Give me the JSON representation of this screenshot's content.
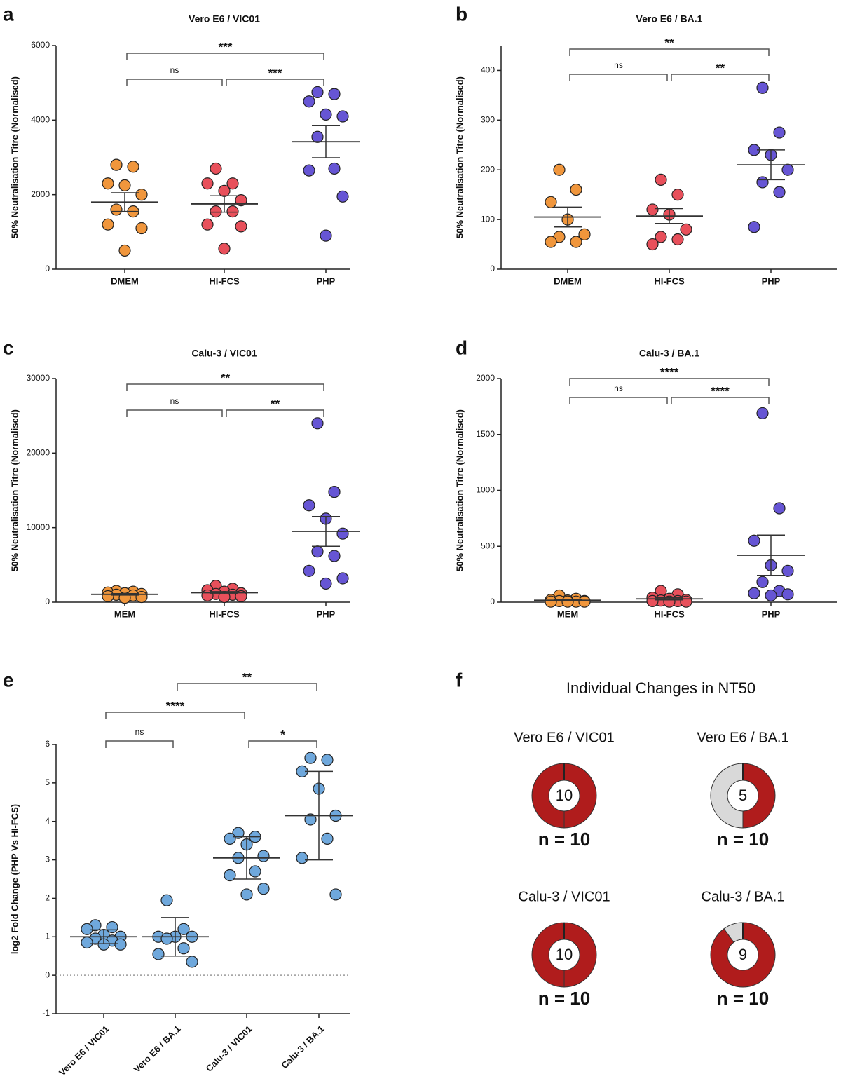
{
  "chart_data": [
    {
      "type": "strip",
      "panel": "a",
      "title": "Vero E6 / VIC01",
      "y_label": "50% Neutralisation Titre (Normalised)",
      "categories": [
        "DMEM",
        "HI-FCS",
        "PHP"
      ],
      "groups": [
        {
          "color": "#f0963c",
          "values": [
            2800,
            2750,
            2300,
            2250,
            2000,
            1600,
            1550,
            1200,
            1100,
            500
          ],
          "mean": 1800,
          "error": 250
        },
        {
          "color": "#e8505b",
          "values": [
            2700,
            2300,
            2300,
            2100,
            1850,
            1550,
            1550,
            1200,
            1150,
            550
          ],
          "mean": 1750,
          "error": 220
        },
        {
          "color": "#6655d4",
          "values": [
            4750,
            4700,
            4500,
            4150,
            4100,
            3550,
            2700,
            2650,
            1950,
            900
          ],
          "mean": 3420,
          "error": 430
        }
      ],
      "ylim": [
        0,
        6000
      ],
      "yticks": [
        0,
        2000,
        4000,
        6000
      ],
      "brackets": [
        {
          "from": 0,
          "to": 1,
          "label": "ns"
        },
        {
          "from": 1,
          "to": 2,
          "label": "***"
        },
        {
          "from": 0,
          "to": 2,
          "label": "***"
        }
      ]
    },
    {
      "type": "strip",
      "panel": "b",
      "title": "Vero E6 / BA.1",
      "y_label": "50% Neutralisation Titre (Normalised)",
      "categories": [
        "DMEM",
        "HI-FCS",
        "PHP"
      ],
      "groups": [
        {
          "color": "#f0963c",
          "values": [
            200,
            160,
            135,
            100,
            70,
            65,
            55,
            55
          ],
          "mean": 105,
          "error": 20
        },
        {
          "color": "#e8505b",
          "values": [
            180,
            150,
            120,
            110,
            80,
            65,
            60,
            50
          ],
          "mean": 107,
          "error": 15
        },
        {
          "color": "#6655d4",
          "values": [
            365,
            275,
            240,
            230,
            200,
            175,
            155,
            85
          ],
          "mean": 210,
          "error": 30
        }
      ],
      "ylim": [
        0,
        450
      ],
      "yticks": [
        0,
        100,
        200,
        300,
        400
      ],
      "brackets": [
        {
          "from": 0,
          "to": 1,
          "label": "ns"
        },
        {
          "from": 1,
          "to": 2,
          "label": "**"
        },
        {
          "from": 0,
          "to": 2,
          "label": "**"
        }
      ]
    },
    {
      "type": "strip",
      "panel": "c",
      "title": "Calu-3 / VIC01",
      "y_label": "50% Neutralisation Titre (Normalised)",
      "categories": [
        "MEM",
        "HI-FCS",
        "PHP"
      ],
      "groups": [
        {
          "color": "#f0963c",
          "values": [
            1500,
            1400,
            1300,
            1200,
            1100,
            1000,
            900,
            800,
            700,
            600
          ],
          "mean": 1050,
          "error": 100
        },
        {
          "color": "#e8505b",
          "values": [
            2200,
            1800,
            1600,
            1400,
            1200,
            1100,
            1000,
            900,
            800,
            700
          ],
          "mean": 1270,
          "error": 150
        },
        {
          "color": "#6655d4",
          "values": [
            24000,
            14800,
            13000,
            11200,
            9200,
            6800,
            6200,
            4200,
            3200,
            2500
          ],
          "mean": 9500,
          "error": 2000
        }
      ],
      "ylim": [
        0,
        30000
      ],
      "yticks": [
        0,
        10000,
        20000,
        30000
      ],
      "brackets": [
        {
          "from": 0,
          "to": 1,
          "label": "ns"
        },
        {
          "from": 1,
          "to": 2,
          "label": "**"
        },
        {
          "from": 0,
          "to": 2,
          "label": "**"
        }
      ]
    },
    {
      "type": "strip",
      "panel": "d",
      "title": "Calu-3 / BA.1",
      "y_label": "50% Neutralisation Titre (Normalised)",
      "categories": [
        "MEM",
        "HI-FCS",
        "PHP"
      ],
      "groups": [
        {
          "color": "#f0963c",
          "values": [
            60,
            30,
            20,
            15,
            10,
            10,
            5,
            5,
            5,
            5
          ],
          "mean": 17,
          "error": 5
        },
        {
          "color": "#e8505b",
          "values": [
            100,
            70,
            40,
            30,
            20,
            15,
            10,
            10,
            5,
            5
          ],
          "mean": 30,
          "error": 10
        },
        {
          "color": "#6655d4",
          "values": [
            1690,
            840,
            550,
            330,
            280,
            180,
            100,
            80,
            70,
            60
          ],
          "mean": 420,
          "error": 180
        }
      ],
      "ylim": [
        0,
        2000
      ],
      "yticks": [
        0,
        500,
        1000,
        1500,
        2000
      ],
      "brackets": [
        {
          "from": 0,
          "to": 1,
          "label": "ns"
        },
        {
          "from": 1,
          "to": 2,
          "label": "****"
        },
        {
          "from": 0,
          "to": 2,
          "label": "****"
        }
      ]
    },
    {
      "type": "strip",
      "panel": "e",
      "y_label": "log2 Fold Change (PHP Vs HI-FCS)",
      "categories": [
        "Vero E6 / VIC01",
        "Vero E6 / BA.1",
        "Calu-3 / VIC01",
        "Calu-3 / BA.1"
      ],
      "groups": [
        {
          "color": "#6fa8dc",
          "values": [
            1.3,
            1.25,
            1.2,
            1.05,
            1.0,
            0.95,
            0.9,
            0.85,
            0.8,
            0.8
          ],
          "mean": 1.0,
          "error": 0.18
        },
        {
          "color": "#6fa8dc",
          "values": [
            1.95,
            1.2,
            1.0,
            1.0,
            1.0,
            0.95,
            0.7,
            0.55,
            0.35
          ],
          "mean": 1.0,
          "error": 0.5
        },
        {
          "color": "#6fa8dc",
          "values": [
            3.7,
            3.6,
            3.55,
            3.4,
            3.1,
            3.05,
            2.7,
            2.6,
            2.25,
            2.1
          ],
          "mean": 3.05,
          "error": 0.55
        },
        {
          "color": "#6fa8dc",
          "values": [
            5.65,
            5.6,
            5.3,
            4.85,
            4.15,
            4.05,
            3.55,
            3.05,
            2.1
          ],
          "mean": 4.15,
          "error": 1.15
        }
      ],
      "ylim": [
        -1,
        6
      ],
      "yticks": [
        -1,
        0,
        1,
        2,
        3,
        4,
        5,
        6
      ],
      "reference_line": 0,
      "brackets": [
        {
          "from": 0,
          "to": 1,
          "label": "ns"
        },
        {
          "from": 2,
          "to": 3,
          "label": "*"
        },
        {
          "from": 0,
          "to": 2,
          "label": "****"
        },
        {
          "from": 1,
          "to": 3,
          "label": "**"
        }
      ]
    },
    {
      "type": "donut",
      "panel": "f",
      "title": "Individual Changes in NT50",
      "colors": [
        "#b01c1c",
        "#d9d9d9"
      ],
      "donuts": [
        {
          "title": "Vero E6 / VIC01",
          "values": [
            10,
            0
          ],
          "n_label": "n = 10"
        },
        {
          "title": "Vero E6 / BA.1",
          "values": [
            5,
            5
          ],
          "n_label": "n = 10"
        },
        {
          "title": "Calu-3 / VIC01",
          "values": [
            10,
            0
          ],
          "n_label": "n = 10"
        },
        {
          "title": "Calu-3 / BA.1",
          "values": [
            9,
            1
          ],
          "n_label": "n = 10"
        }
      ]
    }
  ]
}
